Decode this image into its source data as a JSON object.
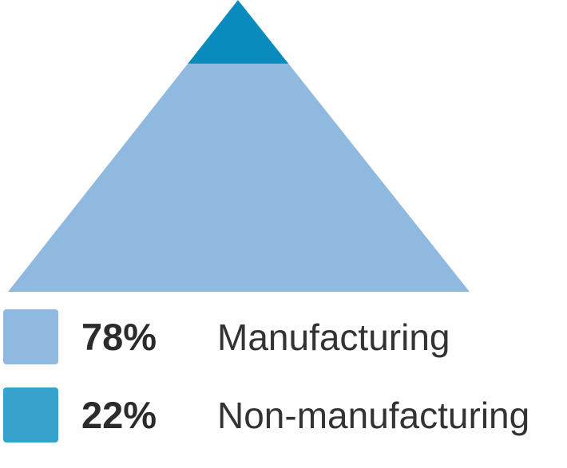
{
  "chart_data": {
    "type": "pyramid",
    "title": "",
    "order": "bottom-to-top",
    "series": [
      {
        "name": "Manufacturing",
        "percent_label": "78%",
        "value": 78,
        "color": "#8fb9de",
        "legend_color": "#8fb9de"
      },
      {
        "name": "Non-manufacturing",
        "percent_label": "22%",
        "value": 22,
        "color": "#0a8bbd",
        "legend_color": "#37a3cc"
      }
    ],
    "legend_placement": "bottom-left"
  }
}
